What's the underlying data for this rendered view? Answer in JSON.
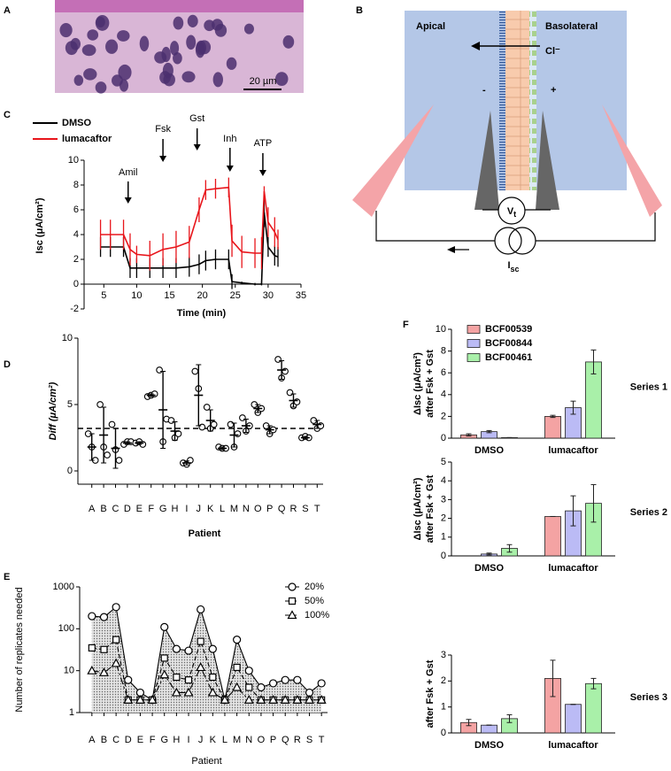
{
  "figure": {
    "panel_labels": [
      "A",
      "B",
      "C",
      "D",
      "E",
      "F"
    ],
    "scale_bar": "20 µm",
    "diagram": {
      "apical": "Apical",
      "basolateral": "Basolateral",
      "ion": "Cl⁻",
      "minus": "-",
      "plus": "+",
      "voltage": {
        "main": "V",
        "sub": "t"
      },
      "current": {
        "main": "I",
        "sub": "sc"
      }
    }
  },
  "chart_data": [
    {
      "type": "line",
      "x": [
        4.5,
        6,
        8,
        9,
        10,
        12,
        14,
        16,
        18,
        19.5,
        20.5,
        22,
        24,
        24.5,
        26,
        28,
        29,
        29.4,
        30,
        31,
        31.5
      ],
      "series": [
        {
          "name": "DMSO",
          "color": "#000000",
          "values": [
            3,
            3,
            3,
            1.3,
            1.3,
            1.3,
            1.3,
            1.3,
            1.4,
            1.6,
            1.9,
            2,
            2,
            0.2,
            0.1,
            0,
            0,
            5.8,
            3,
            2.3,
            2.2
          ],
          "errors": [
            0.8,
            0.8,
            0.8,
            0.8,
            0.8,
            0.8,
            0.8,
            0.8,
            0.8,
            0.8,
            0.8,
            0.8,
            0.8,
            0.6,
            0.1,
            0.1,
            0.1,
            1.2,
            0.8,
            0.8,
            0.8
          ]
        },
        {
          "name": "lumacaftor",
          "color": "#e8151b",
          "values": [
            4,
            4,
            4,
            2.8,
            2.4,
            2.3,
            2.8,
            3,
            3.4,
            6,
            7.6,
            7.7,
            7.8,
            3.5,
            2.6,
            2.5,
            2.5,
            7.5,
            5,
            4.2,
            3.6
          ],
          "errors": [
            1.2,
            1.2,
            1.2,
            1.3,
            0.7,
            1.2,
            1.3,
            1.3,
            1.3,
            1.0,
            0.8,
            0.8,
            0.8,
            1.3,
            1.3,
            1.2,
            1.3,
            0.4,
            1.2,
            1.2,
            0.8
          ]
        }
      ],
      "xlim": [
        2,
        35
      ],
      "xticks": [
        5,
        10,
        15,
        20,
        25,
        30,
        35
      ],
      "ylim": [
        -2,
        10
      ],
      "yticks": [
        -2,
        0,
        2,
        4,
        6,
        8,
        10
      ],
      "x_label": "Time (min)",
      "y_label": "Isc (μA/cm²)",
      "legend": "upper left",
      "annotations": [
        {
          "text": "Amil",
          "x": 8.7
        },
        {
          "text": "Fsk",
          "x": 14
        },
        {
          "text": "Gst",
          "x": 19.2
        },
        {
          "text": "Inh",
          "x": 24.2
        },
        {
          "text": "ATP",
          "x": 29.2
        }
      ]
    },
    {
      "type": "strip",
      "categories": [
        "A",
        "B",
        "C",
        "D",
        "E",
        "F",
        "G",
        "H",
        "I",
        "J",
        "K",
        "L",
        "M",
        "N",
        "O",
        "P",
        "Q",
        "R",
        "S",
        "T"
      ],
      "points": [
        [
          2.8,
          1.8,
          0.8
        ],
        [
          5.0,
          1.8,
          1.2
        ],
        [
          3.5,
          1.6,
          0.8
        ],
        [
          2.0,
          2.2,
          2.2
        ],
        [
          2.1,
          2.2,
          2.0
        ],
        [
          5.6,
          5.7,
          5.8
        ],
        [
          7.6,
          2.2,
          3.9
        ],
        [
          3.8,
          2.5,
          2.8
        ],
        [
          0.6,
          0.5,
          0.8
        ],
        [
          7.5,
          6.2,
          3.3
        ],
        [
          4.8,
          3.2,
          3.5
        ],
        [
          1.8,
          1.7,
          1.7
        ],
        [
          3.5,
          1.8,
          2.8
        ],
        [
          4.0,
          3.0,
          3.4
        ],
        [
          5.0,
          4.4,
          4.7
        ],
        [
          3.4,
          2.8,
          3.1
        ],
        [
          8.4,
          7.0,
          7.5
        ],
        [
          5.9,
          4.9,
          5.2
        ],
        [
          2.5,
          2.6,
          2.5
        ],
        [
          3.8,
          3.2,
          3.4
        ]
      ],
      "values": [
        1.8,
        2.7,
        1.7,
        2.1,
        2.1,
        5.7,
        4.6,
        3.0,
        0.6,
        5.7,
        3.8,
        1.7,
        2.7,
        3.4,
        4.7,
        3.1,
        7.6,
        5.3,
        2.5,
        3.5
      ],
      "errors": [
        1.0,
        2.1,
        1.5,
        0.1,
        0.1,
        0.1,
        2.9,
        0.7,
        0.15,
        2.3,
        0.8,
        0.1,
        0.9,
        0.5,
        0.3,
        0.3,
        0.7,
        0.5,
        0.1,
        0.3
      ],
      "ref_line": 3.2,
      "ylim": [
        -1,
        10
      ],
      "yticks": [
        0,
        5,
        10
      ],
      "x_label": "Patient",
      "y_label": "Diff (μA/cm²)"
    },
    {
      "type": "line",
      "log_y": true,
      "categories": [
        "A",
        "B",
        "C",
        "D",
        "E",
        "F",
        "G",
        "H",
        "I",
        "J",
        "K",
        "L",
        "M",
        "N",
        "O",
        "P",
        "Q",
        "R",
        "S",
        "T"
      ],
      "series": [
        {
          "name": "20%",
          "color": "#000000",
          "marker": "circle",
          "line_style": "solid",
          "shaded": true,
          "values": [
            200,
            190,
            330,
            6,
            3,
            2,
            110,
            33,
            30,
            290,
            33,
            2,
            55,
            10,
            4,
            5,
            6,
            6,
            3,
            5
          ]
        },
        {
          "name": "50%",
          "color": "#000000",
          "marker": "square",
          "line_style": "dashed",
          "values": [
            35,
            32,
            55,
            2,
            2,
            2,
            20,
            7,
            6,
            50,
            7,
            2,
            12,
            4,
            2,
            2,
            2,
            2,
            2,
            2
          ]
        },
        {
          "name": "100%",
          "color": "#000000",
          "marker": "triangle",
          "line_style": "dashdot",
          "values": [
            10,
            9,
            15,
            2,
            2,
            2,
            8,
            3,
            3,
            12,
            3,
            2,
            4,
            2,
            2,
            2,
            2,
            2,
            2,
            2
          ]
        }
      ],
      "ylim": [
        1,
        1000
      ],
      "yticks": [
        1,
        10,
        100,
        1000
      ],
      "x_label": "Patient",
      "y_label": "Number of replicates needed",
      "legend": "upper right"
    },
    {
      "type": "bar",
      "categories": [
        "DMSO",
        "lumacaftor"
      ],
      "series": [
        {
          "name": "BCF00539",
          "color": "#f4a3a3",
          "values": [
            0.3,
            2.0
          ],
          "errors": [
            0.1,
            0.1
          ]
        },
        {
          "name": "BCF00844",
          "color": "#bbbbf5",
          "values": [
            0.6,
            2.8
          ],
          "errors": [
            0.1,
            0.6
          ]
        },
        {
          "name": "BCF00461",
          "color": "#a9f0a9",
          "values": [
            0.05,
            7.0
          ],
          "errors": [
            0,
            1.1
          ]
        }
      ],
      "ylim": [
        0,
        10
      ],
      "yticks": [
        0,
        2,
        4,
        6,
        8,
        10
      ],
      "y_label": [
        "ΔIsc (μA/cm²)",
        "after Fsk + Gst"
      ],
      "annotation": "Series 1",
      "legend": "upper left"
    },
    {
      "type": "bar",
      "categories": [
        "DMSO",
        "lumacaftor"
      ],
      "series": [
        {
          "color": "#f4a3a3",
          "values": [
            null,
            2.1
          ],
          "errors": [
            null,
            0
          ]
        },
        {
          "color": "#bbbbf5",
          "values": [
            0.1,
            2.4
          ],
          "errors": [
            0.05,
            0.8
          ]
        },
        {
          "color": "#a9f0a9",
          "values": [
            0.4,
            2.8
          ],
          "errors": [
            0.2,
            1.0
          ]
        }
      ],
      "ylim": [
        0,
        5
      ],
      "yticks": [
        0,
        1,
        2,
        3,
        4,
        5
      ],
      "y_label": [
        "ΔIsc (μA/cm²)",
        "after Fsk + Gst"
      ],
      "annotation": "Series 2"
    },
    {
      "type": "bar",
      "categories": [
        "DMSO",
        "lumacaftor"
      ],
      "series": [
        {
          "color": "#f4a3a3",
          "values": [
            0.4,
            2.1
          ],
          "errors": [
            0.12,
            0.7
          ]
        },
        {
          "color": "#bbbbf5",
          "values": [
            0.3,
            1.1
          ],
          "errors": [
            0,
            0
          ]
        },
        {
          "color": "#a9f0a9",
          "values": [
            0.55,
            1.9
          ],
          "errors": [
            0.15,
            0.2
          ]
        }
      ],
      "ylim": [
        0,
        3
      ],
      "yticks": [
        0,
        1,
        2,
        3
      ],
      "y_label": [
        "after Fsk + Gst"
      ],
      "annotation": "Series 3"
    }
  ]
}
